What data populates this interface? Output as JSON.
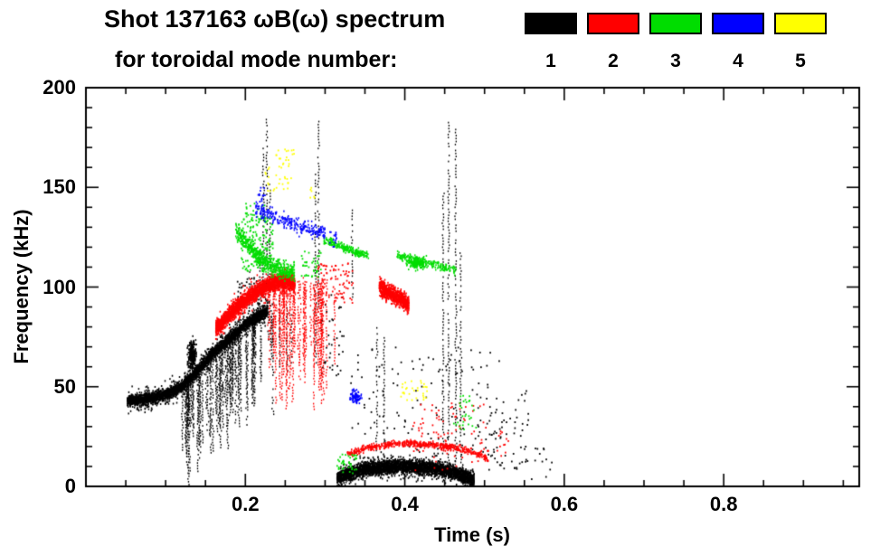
{
  "chart_data": {
    "type": "scatter",
    "title": "Shot 137163 ωB(ω) spectrum",
    "subtitle": "for toroidal mode number:",
    "xlabel": "Time (s)",
    "ylabel": "Frequency (kHz)",
    "xlim": [
      0,
      0.97
    ],
    "ylim": [
      0,
      200
    ],
    "xticks": [
      0.2,
      0.4,
      0.6,
      0.8
    ],
    "xtick_labels": [
      "0.2",
      "0.4",
      "0.6",
      "0.8"
    ],
    "yticks": [
      0,
      50,
      100,
      150,
      200
    ],
    "ytick_labels": [
      "0",
      "50",
      "100",
      "150",
      "200"
    ],
    "xminor_step": 0.05,
    "yminor_step": 10,
    "legend_position": "top-right",
    "grid": false,
    "legend": [
      {
        "label": "1",
        "color": "#000000"
      },
      {
        "label": "2",
        "color": "#ff0000"
      },
      {
        "label": "3",
        "color": "#00dd00"
      },
      {
        "label": "4",
        "color": "#0000ff"
      },
      {
        "label": "5",
        "color": "#ffff00"
      }
    ],
    "series": [
      {
        "name": "toroidal mode n=1",
        "color": "#000000",
        "segments": [
          {
            "kind": "cloud",
            "path": [
              [
                0.052,
                43
              ],
              [
                0.08,
                44
              ],
              [
                0.1,
                46
              ],
              [
                0.12,
                50
              ],
              [
                0.14,
                58
              ],
              [
                0.16,
                67
              ],
              [
                0.18,
                74
              ],
              [
                0.2,
                81
              ],
              [
                0.215,
                85
              ],
              [
                0.228,
                88
              ]
            ],
            "spread": 2.5,
            "n": 2600
          },
          {
            "kind": "cloud",
            "path": [
              [
                0.052,
                43
              ],
              [
                0.08,
                44
              ],
              [
                0.1,
                46
              ],
              [
                0.12,
                50
              ],
              [
                0.14,
                58
              ],
              [
                0.16,
                67
              ],
              [
                0.18,
                74
              ],
              [
                0.2,
                81
              ],
              [
                0.215,
                85
              ],
              [
                0.228,
                88
              ]
            ],
            "spread": 5.5,
            "n": 900
          },
          {
            "kind": "streaks",
            "t0": 0.12,
            "t1": 0.235,
            "top": [
              [
                0.12,
                50
              ],
              [
                0.14,
                58
              ],
              [
                0.16,
                67
              ],
              [
                0.18,
                74
              ],
              [
                0.2,
                81
              ],
              [
                0.215,
                85
              ],
              [
                0.228,
                88
              ]
            ],
            "drop_min": 15,
            "drop_max": 55,
            "count": 70
          },
          {
            "kind": "blob",
            "t": 0.133,
            "f": 66,
            "rt": 0.005,
            "rf": 7,
            "n": 250
          },
          {
            "kind": "spikes",
            "lines": [
              [
                0.205,
                88,
                109
              ],
              [
                0.21,
                86,
                105
              ],
              [
                0.218,
                90,
                120
              ],
              [
                0.2225,
                96,
                171
              ],
              [
                0.227,
                100,
                185
              ],
              [
                0.231,
                96,
                152
              ],
              [
                0.243,
                60,
                95
              ],
              [
                0.252,
                58,
                90
              ],
              [
                0.258,
                62,
                88
              ],
              [
                0.288,
                62,
                157
              ],
              [
                0.292,
                90,
                184
              ],
              [
                0.334,
                95,
                140
              ],
              [
                0.365,
                18,
                80
              ],
              [
                0.374,
                22,
                76
              ],
              [
                0.448,
                12,
                148
              ],
              [
                0.455,
                10,
                184
              ],
              [
                0.464,
                8,
                180
              ],
              [
                0.47,
                12,
                120
              ]
            ]
          },
          {
            "kind": "cloud",
            "path": [
              [
                0.315,
                4
              ],
              [
                0.33,
                6.5
              ],
              [
                0.35,
                8.5
              ],
              [
                0.375,
                9.5
              ],
              [
                0.4,
                10
              ],
              [
                0.425,
                9.5
              ],
              [
                0.445,
                8.5
              ],
              [
                0.46,
                7
              ],
              [
                0.475,
                5
              ],
              [
                0.487,
                3
              ]
            ],
            "spread": 3.2,
            "n": 3200
          },
          {
            "kind": "cloud",
            "path": [
              [
                0.315,
                4
              ],
              [
                0.33,
                6.5
              ],
              [
                0.35,
                8.5
              ],
              [
                0.375,
                9.5
              ],
              [
                0.4,
                10
              ],
              [
                0.425,
                9.5
              ],
              [
                0.445,
                8.5
              ],
              [
                0.46,
                7
              ],
              [
                0.475,
                5
              ],
              [
                0.487,
                3
              ]
            ],
            "spread": 6,
            "n": 500
          },
          {
            "kind": "rect",
            "t0": 0.295,
            "t1": 0.325,
            "f0": 55,
            "f1": 100,
            "n": 40
          },
          {
            "kind": "rect",
            "t0": 0.33,
            "t1": 0.52,
            "f0": 14,
            "f1": 70,
            "n": 130
          },
          {
            "kind": "rect",
            "t0": 0.5,
            "t1": 0.555,
            "f0": 8,
            "f1": 48,
            "n": 70
          },
          {
            "kind": "rect",
            "t0": 0.19,
            "t1": 0.24,
            "f0": 90,
            "f1": 105,
            "n": 60
          },
          {
            "kind": "rect",
            "t0": 0.555,
            "t1": 0.585,
            "f0": 3,
            "f1": 20,
            "n": 12
          }
        ]
      },
      {
        "name": "toroidal mode n=2",
        "color": "#ff0000",
        "segments": [
          {
            "kind": "cloud",
            "path": [
              [
                0.163,
                79
              ],
              [
                0.175,
                84
              ],
              [
                0.19,
                90
              ],
              [
                0.205,
                95
              ],
              [
                0.22,
                99
              ],
              [
                0.235,
                102
              ],
              [
                0.25,
                103
              ],
              [
                0.262,
                102
              ]
            ],
            "spread": 3.5,
            "n": 2000
          },
          {
            "kind": "cloud",
            "path": [
              [
                0.163,
                79
              ],
              [
                0.175,
                84
              ],
              [
                0.19,
                90
              ],
              [
                0.205,
                95
              ],
              [
                0.22,
                99
              ],
              [
                0.235,
                102
              ],
              [
                0.25,
                103
              ],
              [
                0.262,
                102
              ]
            ],
            "spread": 6.5,
            "n": 500
          },
          {
            "kind": "streaks",
            "t0": 0.228,
            "t1": 0.298,
            "top": [
              [
                0.228,
                100
              ],
              [
                0.26,
                103
              ],
              [
                0.298,
                100
              ]
            ],
            "drop_min": 15,
            "drop_max": 62,
            "count": 45
          },
          {
            "kind": "cloud",
            "path": [
              [
                0.368,
                100
              ],
              [
                0.38,
                97
              ],
              [
                0.395,
                94
              ],
              [
                0.405,
                91
              ]
            ],
            "spread": 4,
            "n": 800
          },
          {
            "kind": "cloud",
            "path": [
              [
                0.328,
                16
              ],
              [
                0.35,
                19
              ],
              [
                0.38,
                21
              ],
              [
                0.41,
                21.5
              ],
              [
                0.44,
                20.5
              ],
              [
                0.47,
                19
              ],
              [
                0.495,
                16
              ],
              [
                0.505,
                13
              ]
            ],
            "spread": 1.6,
            "n": 600
          },
          {
            "kind": "rect",
            "t0": 0.29,
            "t1": 0.335,
            "f0": 92,
            "f1": 112,
            "n": 90
          },
          {
            "kind": "spikes",
            "lines": [
              [
                0.302,
                48,
                105
              ],
              [
                0.312,
                60,
                100
              ]
            ]
          },
          {
            "kind": "rect",
            "t0": 0.41,
            "t1": 0.505,
            "f0": 8,
            "f1": 42,
            "n": 90
          },
          {
            "kind": "rect",
            "t0": 0.515,
            "t1": 0.53,
            "f0": 15,
            "f1": 28,
            "n": 12
          }
        ]
      },
      {
        "name": "toroidal mode n=3",
        "color": "#00dd00",
        "segments": [
          {
            "kind": "cloud",
            "path": [
              [
                0.188,
                129
              ],
              [
                0.2,
                123
              ],
              [
                0.21,
                118
              ],
              [
                0.222,
                113
              ],
              [
                0.235,
                110
              ],
              [
                0.25,
                108
              ],
              [
                0.262,
                107
              ]
            ],
            "spread": 4.5,
            "n": 600
          },
          {
            "kind": "rect",
            "t0": 0.195,
            "t1": 0.235,
            "f0": 108,
            "f1": 135,
            "n": 150
          },
          {
            "kind": "rect",
            "t0": 0.2,
            "t1": 0.225,
            "f0": 133,
            "f1": 142,
            "n": 25
          },
          {
            "kind": "cloud",
            "path": [
              [
                0.298,
                124
              ],
              [
                0.315,
                121
              ],
              [
                0.335,
                118
              ],
              [
                0.355,
                116
              ]
            ],
            "spread": 2.2,
            "n": 220
          },
          {
            "kind": "cloud",
            "path": [
              [
                0.39,
                116
              ],
              [
                0.415,
                113
              ],
              [
                0.44,
                111
              ],
              [
                0.465,
                108
              ]
            ],
            "spread": 2.2,
            "n": 220
          },
          {
            "kind": "blob",
            "t": 0.415,
            "f": 112,
            "rt": 0.01,
            "rf": 3,
            "n": 150
          },
          {
            "kind": "rect",
            "t0": 0.315,
            "t1": 0.34,
            "f0": 6,
            "f1": 16,
            "n": 40
          },
          {
            "kind": "rect",
            "t0": 0.46,
            "t1": 0.49,
            "f0": 28,
            "f1": 46,
            "n": 30
          },
          {
            "kind": "rect",
            "t0": 0.27,
            "t1": 0.295,
            "f0": 105,
            "f1": 118,
            "n": 40
          }
        ]
      },
      {
        "name": "toroidal mode n=4",
        "color": "#0000ff",
        "segments": [
          {
            "kind": "cloud",
            "path": [
              [
                0.213,
                139
              ],
              [
                0.23,
                136
              ],
              [
                0.25,
                133
              ],
              [
                0.27,
                130
              ],
              [
                0.288,
                128
              ],
              [
                0.3,
                127
              ]
            ],
            "spread": 4,
            "n": 260
          },
          {
            "kind": "blob",
            "t": 0.338,
            "f": 45,
            "rt": 0.007,
            "rf": 3.2,
            "n": 90
          },
          {
            "kind": "rect",
            "t0": 0.305,
            "t1": 0.315,
            "f0": 120,
            "f1": 128,
            "n": 15
          },
          {
            "kind": "rect",
            "t0": 0.215,
            "t1": 0.225,
            "f0": 143,
            "f1": 150,
            "n": 12
          }
        ]
      },
      {
        "name": "toroidal mode n=5",
        "color": "#ffff00",
        "segments": [
          {
            "kind": "rect",
            "t0": 0.225,
            "t1": 0.262,
            "f0": 148,
            "f1": 170,
            "n": 45
          },
          {
            "kind": "rect",
            "t0": 0.395,
            "t1": 0.43,
            "f0": 43,
            "f1": 53,
            "n": 30
          },
          {
            "kind": "rect",
            "t0": 0.28,
            "t1": 0.29,
            "f0": 143,
            "f1": 150,
            "n": 6
          }
        ]
      }
    ]
  }
}
